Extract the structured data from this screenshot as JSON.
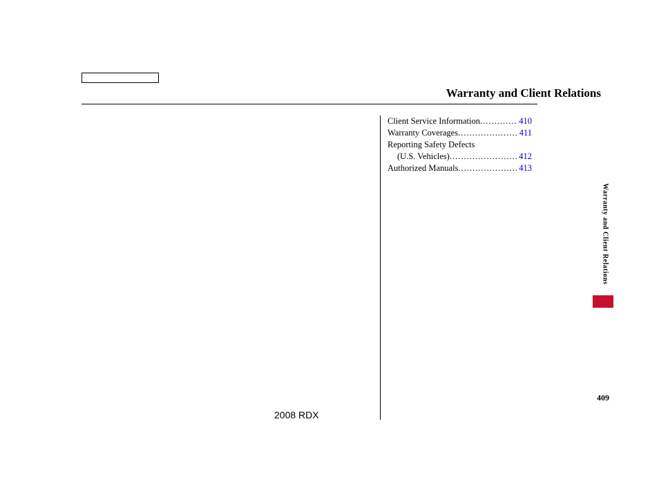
{
  "section_title": "Warranty and Client Relations",
  "toc": {
    "entries": [
      {
        "label": "Client Service Information",
        "page": "410",
        "indent": false,
        "dots": true
      },
      {
        "label": "Warranty Coverages",
        "page": "411",
        "indent": false,
        "dots": true
      },
      {
        "label": "Reporting Safety Defects",
        "page": "",
        "indent": false,
        "dots": false
      },
      {
        "label": "(U.S. Vehicles)",
        "page": "412",
        "indent": true,
        "dots": true
      },
      {
        "label": "Authorized Manuals",
        "page": "413",
        "indent": false,
        "dots": true
      }
    ]
  },
  "side_tab_text": "Warranty and Client Relations",
  "page_number": "409",
  "footer": "2008  RDX",
  "colors": {
    "link": "#0000cc",
    "accent": "#c8102e",
    "text": "#000000",
    "background": "#ffffff"
  }
}
